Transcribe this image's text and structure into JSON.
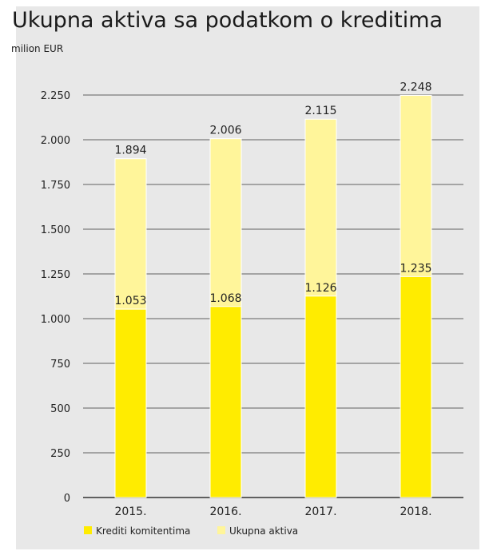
{
  "title": "Ukupna aktiva sa podatkom o kreditima",
  "subtitle": "milion EUR",
  "colors": {
    "krediti": "#ffec00",
    "aktiva": "#fff59a",
    "grid": "#333333",
    "background": "#e8e8e8"
  },
  "chart_data": {
    "type": "bar",
    "stacking": "overlay",
    "categories": [
      "2015.",
      "2016.",
      "2017.",
      "2018."
    ],
    "series": [
      {
        "name": "Ukupna aktiva",
        "values": [
          1894,
          2006,
          2115,
          2248
        ],
        "labels": [
          "1.894",
          "2.006",
          "2.115",
          "2.248"
        ]
      },
      {
        "name": "Krediti komitentima",
        "values": [
          1053,
          1068,
          1126,
          1235
        ],
        "labels": [
          "1.053",
          "1.068",
          "1.126",
          "1.235"
        ]
      }
    ],
    "ylim": [
      0,
      2250
    ],
    "yticks": [
      0,
      250,
      500,
      750,
      1000,
      1250,
      1500,
      1750,
      2000,
      2250
    ],
    "ytick_labels": [
      "0",
      "250",
      "500",
      "750",
      "1.000",
      "1.250",
      "1.500",
      "1.750",
      "2.000",
      "2.250"
    ],
    "grid": true,
    "legend_placement": "bottom-left",
    "legend": [
      "Krediti komitentima",
      "Ukupna aktiva"
    ]
  }
}
